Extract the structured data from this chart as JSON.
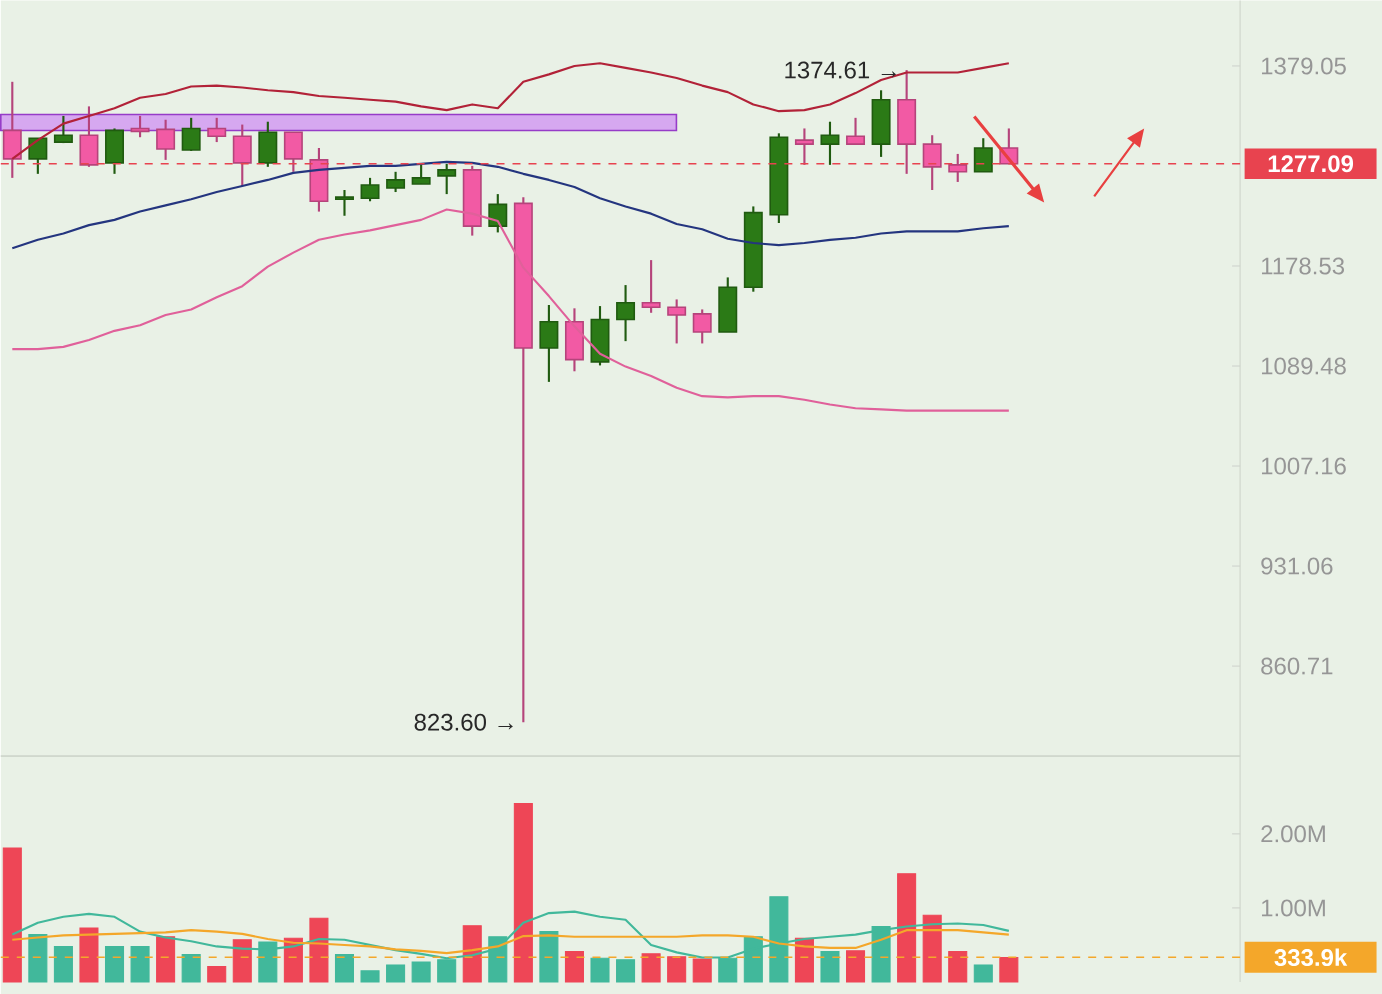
{
  "chart_data": [
    {
      "type": "candlestick",
      "categories": [
        null,
        null,
        null,
        null,
        null,
        null,
        null,
        null,
        null,
        null,
        null,
        null,
        null,
        null,
        null,
        null,
        null,
        null,
        null,
        null,
        null,
        null,
        null,
        null,
        null,
        null,
        null,
        null,
        null,
        null,
        null,
        null,
        null,
        null,
        null,
        null,
        null,
        null,
        null,
        null
      ],
      "ohlc": [
        [
          1311,
          1362,
          1263,
          1282
        ],
        [
          1282,
          1303,
          1267,
          1303
        ],
        [
          1299,
          1326,
          1298,
          1306
        ],
        [
          1306,
          1336,
          1274,
          1276
        ],
        [
          1278,
          1313,
          1267,
          1311
        ],
        [
          1313,
          1326,
          1304,
          1310
        ],
        [
          1312,
          1322,
          1281,
          1292
        ],
        [
          1291,
          1324,
          1290,
          1313
        ],
        [
          1313,
          1324,
          1299,
          1305
        ],
        [
          1305,
          1317,
          1255,
          1278
        ],
        [
          1278,
          1320,
          1274,
          1309
        ],
        [
          1309,
          1309,
          1269,
          1282
        ],
        [
          1281,
          1293,
          1230,
          1240
        ],
        [
          1242,
          1251,
          1226,
          1244
        ],
        [
          1243,
          1263,
          1240,
          1256
        ],
        [
          1253,
          1269,
          1249,
          1261
        ],
        [
          1257,
          1277,
          1257,
          1263
        ],
        [
          1265,
          1277,
          1247,
          1271
        ],
        [
          1271,
          1275,
          1207,
          1216
        ],
        [
          1216,
          1247,
          1210,
          1237
        ],
        [
          1238,
          1244,
          823.6,
          1105
        ],
        [
          1105,
          1143,
          1076,
          1128
        ],
        [
          1128,
          1140,
          1085,
          1095
        ],
        [
          1093,
          1142,
          1090,
          1130
        ],
        [
          1130,
          1161,
          1111,
          1145
        ],
        [
          1145,
          1184,
          1136,
          1141
        ],
        [
          1141,
          1148,
          1109,
          1134
        ],
        [
          1135,
          1139,
          1109,
          1119
        ],
        [
          1119,
          1168,
          1119,
          1159
        ],
        [
          1159,
          1235,
          1155,
          1229
        ],
        [
          1227,
          1308,
          1219,
          1304
        ],
        [
          1301,
          1313,
          1276,
          1297
        ],
        [
          1297,
          1320,
          1276,
          1306
        ],
        [
          1305,
          1324,
          1297,
          1297
        ],
        [
          1297,
          1353,
          1284,
          1343
        ],
        [
          1343,
          1374.61,
          1267,
          1297
        ],
        [
          1297,
          1306,
          1251,
          1274
        ],
        [
          1276,
          1287,
          1259,
          1269
        ],
        [
          1269,
          1303,
          1269,
          1293
        ],
        [
          1293,
          1313,
          1277.09,
          1277.09
        ]
      ],
      "colors": [
        "#f25aa4",
        "#2b7a16",
        "#2b7a16",
        "#f25aa4",
        "#2b7a16",
        "#f25aa4",
        "#f25aa4",
        "#2b7a16",
        "#f25aa4",
        "#f25aa4",
        "#2b7a16",
        "#f25aa4",
        "#f25aa4",
        "#2b7a16",
        "#2b7a16",
        "#2b7a16",
        "#2b7a16",
        "#2b7a16",
        "#f25aa4",
        "#2b7a16",
        "#f25aa4",
        "#2b7a16",
        "#f25aa4",
        "#2b7a16",
        "#2b7a16",
        "#f25aa4",
        "#f25aa4",
        "#f25aa4",
        "#2b7a16",
        "#2b7a16",
        "#2b7a16",
        "#f25aa4",
        "#2b7a16",
        "#f25aa4",
        "#2b7a16",
        "#f25aa4",
        "#f25aa4",
        "#f25aa4",
        "#2b7a16",
        "#f25aa4"
      ],
      "series": [
        {
          "type": "line",
          "color": "#b22238",
          "values": [
            1282,
            1301,
            1318,
            1326,
            1334,
            1345,
            1349,
            1357,
            1358,
            1356,
            1353,
            1351,
            1347,
            1345,
            1343,
            1341,
            1336,
            1332,
            1338,
            1334,
            1362,
            1370,
            1379,
            1382,
            1377,
            1372,
            1366,
            1358,
            1351,
            1338,
            1331,
            1332,
            1338,
            1350,
            1364,
            1372,
            1372,
            1372,
            1377,
            1382
          ]
        },
        {
          "type": "line",
          "color": "#24357f",
          "values": [
            1195,
            1203,
            1209,
            1217,
            1222,
            1230,
            1236,
            1242,
            1249,
            1255,
            1261,
            1268,
            1271,
            1273,
            1275,
            1275,
            1277,
            1279,
            1278,
            1274,
            1267,
            1261,
            1254,
            1243,
            1235,
            1228,
            1218,
            1213,
            1204,
            1200,
            1198,
            1200,
            1203,
            1205,
            1209,
            1211,
            1211,
            1211,
            1214,
            1216
          ]
        },
        {
          "type": "line",
          "color": "#e0609a",
          "values": [
            1104,
            1104,
            1106,
            1112,
            1120,
            1125,
            1134,
            1139,
            1150,
            1160,
            1178,
            1191,
            1203,
            1208,
            1212,
            1217,
            1222,
            1232,
            1228,
            1221,
            1177,
            1151,
            1124,
            1100,
            1089,
            1081,
            1071,
            1064,
            1063,
            1064,
            1064,
            1061,
            1057,
            1054,
            1053,
            1052,
            1052,
            1052,
            1052,
            1052
          ]
        }
      ],
      "ylim": [
        802,
        1452
      ],
      "log": "y",
      "yticks": [
        1379.05,
        1178.53,
        1089.48,
        1007.16,
        931.06,
        860.71
      ],
      "tick_labels": "y",
      "ref_lines": [
        {
          "axis": "y",
          "value": 1277.09,
          "label": "1277.09",
          "color": "#e8434f",
          "line_style": "dashed"
        }
      ],
      "annotations": [
        "1374.61 →",
        "823.60 →"
      ]
    },
    {
      "type": "bar",
      "categories": [
        null,
        null,
        null,
        null,
        null,
        null,
        null,
        null,
        null,
        null,
        null,
        null,
        null,
        null,
        null,
        null,
        null,
        null,
        null,
        null,
        null,
        null,
        null,
        null,
        null,
        null,
        null,
        null,
        null,
        null,
        null,
        null,
        null,
        null,
        null,
        null,
        null,
        null,
        null,
        null
      ],
      "series": [
        {
          "type": "bar",
          "values": [
            1.81,
            0.64,
            0.48,
            0.73,
            0.48,
            0.48,
            0.61,
            0.37,
            0.21,
            0.57,
            0.54,
            0.59,
            0.86,
            0.37,
            0.15,
            0.23,
            0.27,
            0.3,
            0.76,
            0.61,
            2.41,
            0.68,
            0.41,
            0.32,
            0.3,
            0.38,
            0.34,
            0.31,
            0.32,
            0.61,
            1.15,
            0.59,
            0.41,
            0.42,
            0.75,
            1.46,
            0.9,
            0.41,
            0.23,
            0.33
          ],
          "colors": [
            "#ee4656",
            "#41b89b",
            "#41b89b",
            "#ee4656",
            "#41b89b",
            "#41b89b",
            "#ee4656",
            "#41b89b",
            "#ee4656",
            "#ee4656",
            "#41b89b",
            "#ee4656",
            "#ee4656",
            "#41b89b",
            "#41b89b",
            "#41b89b",
            "#41b89b",
            "#41b89b",
            "#ee4656",
            "#41b89b",
            "#ee4656",
            "#41b89b",
            "#ee4656",
            "#41b89b",
            "#41b89b",
            "#ee4656",
            "#ee4656",
            "#ee4656",
            "#41b89b",
            "#41b89b",
            "#41b89b",
            "#ee4656",
            "#41b89b",
            "#ee4656",
            "#41b89b",
            "#ee4656",
            "#ee4656",
            "#ee4656",
            "#41b89b",
            "#ee4656"
          ]
        },
        {
          "type": "line",
          "color": "#41b89b",
          "values": [
            0.64,
            0.8,
            0.88,
            0.92,
            0.88,
            0.68,
            0.6,
            0.55,
            0.48,
            0.45,
            0.44,
            0.48,
            0.58,
            0.57,
            0.5,
            0.43,
            0.38,
            0.32,
            0.36,
            0.45,
            0.8,
            0.93,
            0.95,
            0.88,
            0.84,
            0.5,
            0.4,
            0.33,
            0.33,
            0.45,
            0.52,
            0.58,
            0.61,
            0.64,
            0.7,
            0.75,
            0.78,
            0.79,
            0.77,
            0.69
          ]
        },
        {
          "type": "line",
          "color": "#f4a72a",
          "values": [
            0.57,
            0.6,
            0.63,
            0.64,
            0.65,
            0.66,
            0.67,
            0.7,
            0.68,
            0.65,
            0.58,
            0.53,
            0.52,
            0.5,
            0.48,
            0.44,
            0.42,
            0.39,
            0.43,
            0.48,
            0.62,
            0.63,
            0.61,
            0.61,
            0.61,
            0.61,
            0.61,
            0.63,
            0.63,
            0.61,
            0.52,
            0.48,
            0.46,
            0.46,
            0.57,
            0.7,
            0.7,
            0.7,
            0.67,
            0.64
          ]
        }
      ],
      "ylim": [
        0,
        3.05
      ],
      "yticks": [
        {
          "value": 2,
          "label": "2.00M"
        },
        {
          "value": 1,
          "label": "1.00M"
        }
      ],
      "tick_labels": "y",
      "ref_lines": [
        {
          "axis": "y",
          "value": 0.3339,
          "label": "333.9k",
          "color": "#f4a72a",
          "line_style": "dashed"
        }
      ]
    }
  ]
}
